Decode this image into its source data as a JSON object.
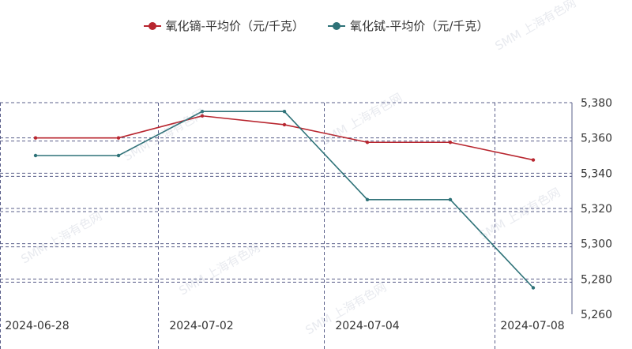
{
  "chart_data": {
    "type": "line",
    "x": [
      "2024-06-28",
      "2024-07-01",
      "2024-07-02",
      "2024-07-03",
      "2024-07-04",
      "2024-07-05",
      "2024-07-08"
    ],
    "x_tick_labels": [
      "2024-06-28",
      "2024-07-02",
      "2024-07-04",
      "2024-07-08"
    ],
    "series": [
      {
        "name": "氧化镝-平均价（元/千克）",
        "color": "#b8262f",
        "values": [
          5360,
          5360,
          5372.5,
          5367.5,
          5357.5,
          5357.5,
          5347.5
        ]
      },
      {
        "name": "氧化铽-平均价（元/千克）",
        "color": "#2e7278",
        "values": [
          5350,
          5350,
          5375,
          5375,
          5325,
          5325,
          5275
        ]
      }
    ],
    "ylim": [
      5260,
      5380
    ],
    "y_ticks": [
      "5,260",
      "5,280",
      "5,300",
      "5,320",
      "5,340",
      "5,360",
      "5,380"
    ],
    "y_axis_position": "right",
    "grid": true,
    "legend_position": "top-center"
  },
  "watermark": "SMM 上海有色网"
}
